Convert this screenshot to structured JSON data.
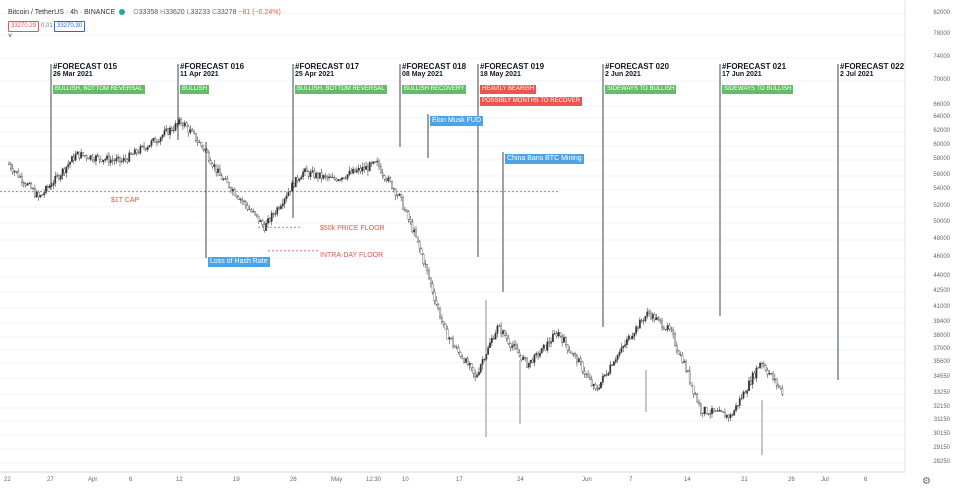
{
  "header": {
    "symbol": "Bitcoin / TetherUS · 4h · BINANCE",
    "o": "33358",
    "h": "33620",
    "l": "33233",
    "c": "33278",
    "change": "−81 (−0.24%)",
    "bid": "33270.29",
    "spread": "0.01",
    "ask": "33270.30",
    "collapse": "˅"
  },
  "forecasts": [
    {
      "title": "#FORECAST 015",
      "date": "26 Mar 2021",
      "tags": [
        {
          "text": "BULLISH, BOTTOM REVERSAL",
          "color": "green"
        }
      ]
    },
    {
      "title": "#FORECAST 016",
      "date": "11 Apr 2021",
      "tags": [
        {
          "text": "BULLISH",
          "color": "green"
        }
      ]
    },
    {
      "title": "#FORECAST 017",
      "date": "25 Apr 2021",
      "tags": [
        {
          "text": "BULLISH, BOTTOM REVERSAL",
          "color": "green"
        }
      ]
    },
    {
      "title": "#FORECAST 018",
      "date": "08 May 2021",
      "tags": [
        {
          "text": "BULLISH RECOVERY",
          "color": "green"
        }
      ]
    },
    {
      "title": "#FORECAST 019",
      "date": "18 May 2021",
      "tags": [
        {
          "text": "HEAVILY BEARISH",
          "color": "red"
        },
        {
          "text": "POSSIBLY MONTHS TO RECOVER",
          "color": "red"
        }
      ]
    },
    {
      "title": "#FORECAST 020",
      "date": "2 Jun 2021",
      "tags": [
        {
          "text": "SIDEWAYS TO BULLISH",
          "color": "green"
        }
      ]
    },
    {
      "title": "#FORECAST 021",
      "date": "17 Jun 2021",
      "tags": [
        {
          "text": "SIDEWAYS TO BULLISH",
          "color": "green"
        }
      ]
    },
    {
      "title": "#FORECAST 022",
      "date": "2 Jul 2021",
      "tags": []
    }
  ],
  "events": [
    {
      "text": "Loss of Hash Rate"
    },
    {
      "text": "Elon Musk FUD"
    },
    {
      "text": "China Bans BTC Mining"
    }
  ],
  "levels": [
    {
      "text": "$1T CAP",
      "value": 53800
    },
    {
      "text": "$50k PRICE FLOOR",
      "value": 49500
    },
    {
      "text": "INTRA-DAY FLOOR",
      "value": 46800
    }
  ],
  "chart_data": {
    "type": "candlestick",
    "title": "Bitcoin / TetherUS",
    "interval": "4h",
    "exchange": "BINANCE",
    "y_axis_ticks": [
      "82000",
      "78000",
      "74000",
      "70000",
      "66000",
      "64000",
      "62000",
      "60000",
      "58000",
      "56000",
      "54000",
      "52000",
      "50000",
      "48000",
      "46000",
      "44000",
      "42500",
      "41000",
      "39400",
      "38000",
      "37000",
      "35600",
      "34550",
      "33250",
      "32150",
      "31150",
      "30150",
      "29150",
      "28250"
    ],
    "x_axis_ticks": [
      "22",
      "27",
      "Apr",
      "6",
      "12",
      "19",
      "26",
      "May",
      "12:30",
      "10",
      "17",
      "24",
      "Jun",
      "7",
      "14",
      "21",
      "26",
      "Jul",
      "6"
    ],
    "close_path_approx": [
      {
        "date": "2021-03-22",
        "close": 57500
      },
      {
        "date": "2021-03-26",
        "close": 53000
      },
      {
        "date": "2021-03-31",
        "close": 58800
      },
      {
        "date": "2021-04-06",
        "close": 57800
      },
      {
        "date": "2021-04-10",
        "close": 60500
      },
      {
        "date": "2021-04-14",
        "close": 63500
      },
      {
        "date": "2021-04-17",
        "close": 59500
      },
      {
        "date": "2021-04-19",
        "close": 56000
      },
      {
        "date": "2021-04-25",
        "close": 49500
      },
      {
        "date": "2021-04-30",
        "close": 56500
      },
      {
        "date": "2021-05-04",
        "close": 55500
      },
      {
        "date": "2021-05-10",
        "close": 57500
      },
      {
        "date": "2021-05-13",
        "close": 53000
      },
      {
        "date": "2021-05-15",
        "close": 48500
      },
      {
        "date": "2021-05-17",
        "close": 43500
      },
      {
        "date": "2021-05-19",
        "close": 38500
      },
      {
        "date": "2021-05-23",
        "close": 34500
      },
      {
        "date": "2021-05-26",
        "close": 39000
      },
      {
        "date": "2021-05-30",
        "close": 35500
      },
      {
        "date": "2021-06-03",
        "close": 38500
      },
      {
        "date": "2021-06-08",
        "close": 33500
      },
      {
        "date": "2021-06-15",
        "close": 40500
      },
      {
        "date": "2021-06-18",
        "close": 38500
      },
      {
        "date": "2021-06-22",
        "close": 32000
      },
      {
        "date": "2021-06-26",
        "close": 31500
      },
      {
        "date": "2021-06-30",
        "close": 35800
      },
      {
        "date": "2021-07-03",
        "close": 33300
      }
    ]
  },
  "colors": {
    "bull": "#2f2f2f",
    "bear": "#ffffff",
    "grid": "#f0f3fa",
    "level": "#e05545",
    "vline": "#131722"
  }
}
